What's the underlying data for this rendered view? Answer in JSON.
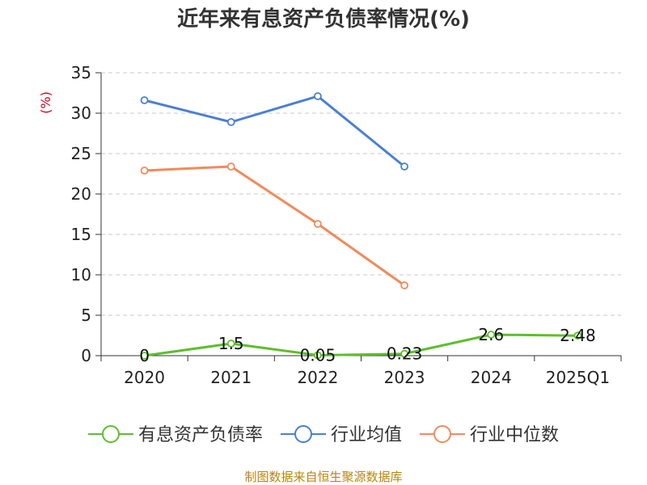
{
  "chart_data": {
    "type": "line",
    "title": "近年来有息资产负债率情况(%)",
    "ylabel": "(%)",
    "xlabel": "",
    "categories": [
      "2020",
      "2021",
      "2022",
      "2023",
      "2024",
      "2025Q1"
    ],
    "ylim": [
      0,
      35
    ],
    "yticks": [
      0,
      5,
      10,
      15,
      20,
      25,
      30,
      35
    ],
    "grid": true,
    "legend_position": "bottom",
    "series": [
      {
        "name": "有息资产负债率",
        "color": "#5dbf2c",
        "values": [
          0,
          1.5,
          0.05,
          0.23,
          2.6,
          2.48
        ],
        "labels": [
          "0",
          "1.5",
          "0.05",
          "0.23",
          "2.6",
          "2.48"
        ]
      },
      {
        "name": "行业均值",
        "color": "#4a7fd6",
        "values": [
          31.6,
          28.9,
          32.1,
          23.4,
          null,
          null
        ]
      },
      {
        "name": "行业中位数",
        "color": "#f28a5a",
        "values": [
          22.9,
          23.4,
          16.3,
          8.7,
          null,
          null
        ]
      }
    ]
  },
  "footer": {
    "source": "制图数据来自恒生聚源数据库"
  }
}
